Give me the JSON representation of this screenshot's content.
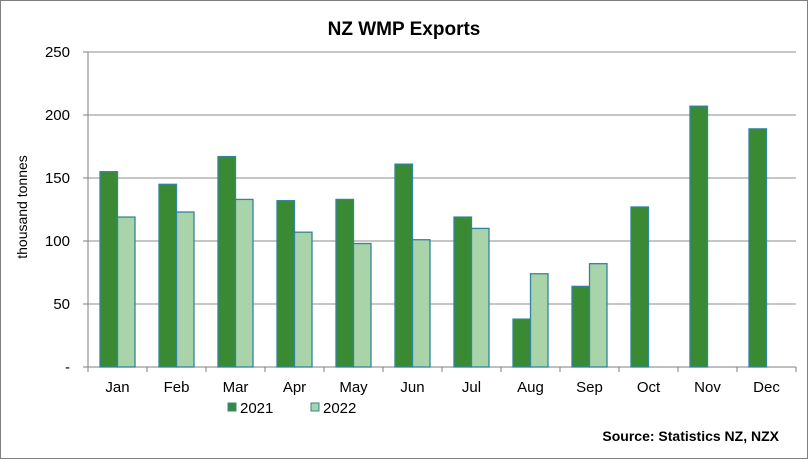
{
  "chart_data": {
    "type": "bar",
    "title": "NZ  WMP Exports",
    "xlabel": "",
    "ylabel": "thousand tonnes",
    "categories": [
      "Jan",
      "Feb",
      "Mar",
      "Apr",
      "May",
      "Jun",
      "Jul",
      "Aug",
      "Sep",
      "Oct",
      "Nov",
      "Dec"
    ],
    "series": [
      {
        "name": "2021",
        "color": "#3a8a34",
        "values": [
          155,
          145,
          167,
          132,
          133,
          161,
          119,
          38,
          64,
          127,
          207,
          189
        ]
      },
      {
        "name": "2022",
        "color": "#a9d3a9",
        "values": [
          119,
          123,
          133,
          107,
          98,
          101,
          110,
          74,
          82,
          null,
          null,
          null
        ]
      }
    ],
    "ylim": [
      0,
      250
    ],
    "yticks": [
      0,
      50,
      100,
      150,
      200,
      250
    ],
    "ytick_labels": [
      "-",
      "50",
      "100",
      "150",
      "200",
      "250"
    ],
    "grid": true,
    "legend_position": "bottom-left",
    "bar_outline_color": "#31859c",
    "source": "Source:  Statistics NZ, NZX"
  }
}
